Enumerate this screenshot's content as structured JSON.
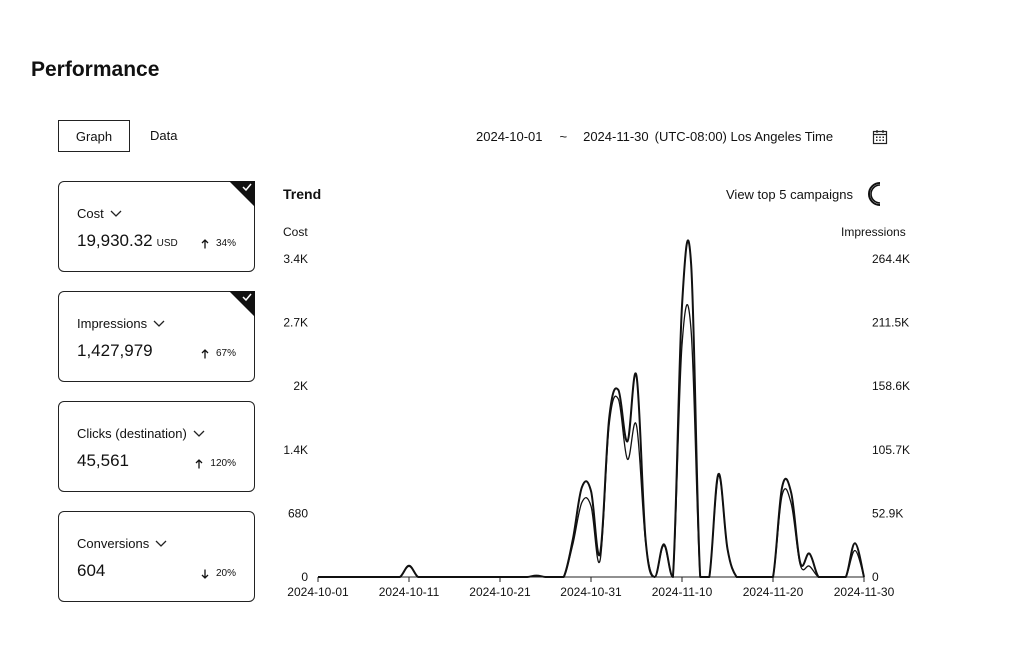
{
  "page": {
    "title": "Performance"
  },
  "tabs": [
    {
      "label": "Graph",
      "active": true
    },
    {
      "label": "Data",
      "active": false
    }
  ],
  "date_range": {
    "start": "2024-10-01",
    "separator": "~",
    "end": "2024-11-30",
    "timezone": "(UTC-08:00) Los Angeles Time",
    "icon": "calendar-icon"
  },
  "metrics": [
    {
      "label": "Cost",
      "value": "19,930.32",
      "unit": "USD",
      "change": "34%",
      "direction": "up",
      "selected": true
    },
    {
      "label": "Impressions",
      "value": "1,427,979",
      "unit": "",
      "change": "67%",
      "direction": "up",
      "selected": true
    },
    {
      "label": "Clicks (destination)",
      "value": "45,561",
      "unit": "",
      "change": "120%",
      "direction": "up",
      "selected": false
    },
    {
      "label": "Conversions",
      "value": "604",
      "unit": "",
      "change": "20%",
      "direction": "down",
      "selected": false
    }
  ],
  "trend": {
    "title": "Trend",
    "toggle_label": "View top 5 campaigns",
    "toggle_on": false
  },
  "chart_data": {
    "type": "line",
    "x_ticks": [
      "2024-10-01",
      "2024-10-11",
      "2024-10-21",
      "2024-10-31",
      "2024-11-10",
      "2024-11-20",
      "2024-11-30"
    ],
    "y_left": {
      "label": "Cost",
      "ticks": [
        "3.4K",
        "2.7K",
        "2K",
        "1.4K",
        "680",
        "0"
      ],
      "max": 3400
    },
    "y_right": {
      "label": "Impressions",
      "ticks": [
        "264.4K",
        "211.5K",
        "158.6K",
        "105.7K",
        "52.9K",
        "0"
      ],
      "max": 264400
    },
    "x_start": "2024-10-01",
    "series": [
      {
        "axis": "left",
        "values": [
          0,
          0,
          0,
          0,
          0,
          0,
          0,
          0,
          0,
          0,
          120,
          0,
          0,
          0,
          0,
          0,
          0,
          0,
          0,
          0,
          0,
          0,
          0,
          0,
          15,
          0,
          0,
          0,
          400,
          960,
          920,
          250,
          1700,
          2000,
          1450,
          2150,
          400,
          0,
          350,
          0,
          2900,
          3350,
          0,
          0,
          1100,
          300,
          0,
          0,
          0,
          0,
          0,
          960,
          900,
          150,
          250,
          0,
          0,
          0,
          0,
          360,
          0
        ],
        "width": 2
      },
      {
        "axis": "right",
        "values": [
          0,
          0,
          0,
          0,
          0,
          0,
          0,
          0,
          0,
          0,
          9000,
          0,
          0,
          0,
          0,
          0,
          0,
          0,
          0,
          0,
          0,
          0,
          0,
          0,
          1000,
          0,
          0,
          0,
          27000,
          62000,
          59000,
          14000,
          127000,
          148000,
          98000,
          126000,
          29000,
          0,
          26000,
          0,
          193000,
          205000,
          0,
          0,
          84000,
          23000,
          0,
          0,
          0,
          0,
          0,
          68000,
          61000,
          10000,
          9000,
          0,
          0,
          0,
          0,
          22000,
          0
        ],
        "width": 1.3
      }
    ]
  }
}
